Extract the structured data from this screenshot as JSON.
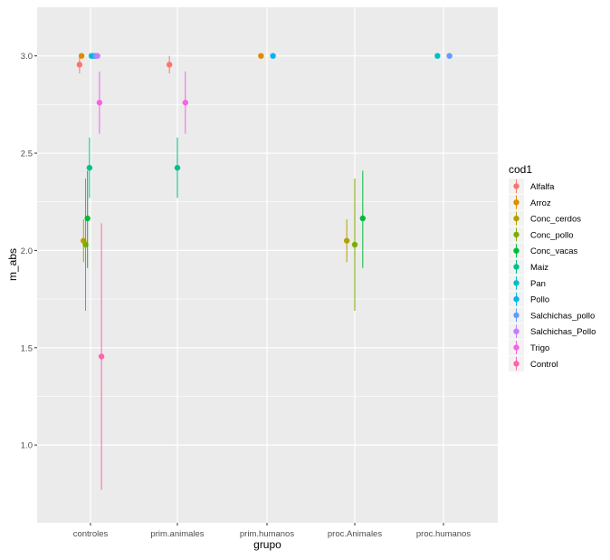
{
  "chart_data": {
    "type": "scatter",
    "subtype": "point-range (mean with error bars), dodged by series",
    "xlabel": "grupo",
    "ylabel": "m_abs",
    "categories": [
      "controles",
      "prim.animales",
      "prim.humanos",
      "proc.Animales",
      "proc.humanos"
    ],
    "ylim": [
      0.6,
      3.25
    ],
    "yticks": [
      1.0,
      1.5,
      2.0,
      2.5,
      3.0
    ],
    "ytick_labels": [
      "1.0",
      "1.5",
      "2.0",
      "2.5",
      "3.0"
    ],
    "grid": true,
    "legend": {
      "title": "cod1",
      "position": "right"
    },
    "series": [
      {
        "name": "Alfalfa",
        "color": "#F8766D",
        "points": [
          {
            "category": "controles",
            "y": 2.955,
            "ymin": 2.91,
            "ymax": 3.0
          },
          {
            "category": "prim.animales",
            "y": 2.955,
            "ymin": 2.91,
            "ymax": 3.0
          }
        ]
      },
      {
        "name": "Arroz",
        "color": "#DE8C00",
        "points": [
          {
            "category": "controles",
            "y": 3.0,
            "ymin": 3.0,
            "ymax": 3.0
          },
          {
            "category": "prim.humanos",
            "y": 3.0,
            "ymin": 3.0,
            "ymax": 3.0
          }
        ]
      },
      {
        "name": "Conc_cerdos",
        "color": "#B79F00",
        "points": [
          {
            "category": "controles",
            "y": 2.05,
            "ymin": 1.94,
            "ymax": 2.16
          },
          {
            "category": "proc.Animales",
            "y": 2.05,
            "ymin": 1.94,
            "ymax": 2.16
          }
        ]
      },
      {
        "name": "Conc_pollo",
        "color": "#7CAE00",
        "points": [
          {
            "category": "controles",
            "y": 2.03,
            "ymin": 1.69,
            "ymax": 2.37
          },
          {
            "category": "proc.Animales",
            "y": 2.03,
            "ymin": 1.69,
            "ymax": 2.37
          }
        ]
      },
      {
        "name": "Conc_vacas",
        "color": "#00BA38",
        "points": [
          {
            "category": "controles",
            "y": 2.165,
            "ymin": 1.91,
            "ymax": 2.41
          },
          {
            "category": "proc.Animales",
            "y": 2.165,
            "ymin": 1.91,
            "ymax": 2.41
          }
        ]
      },
      {
        "name": "Maiz",
        "color": "#00C08B",
        "points": [
          {
            "category": "controles",
            "y": 2.425,
            "ymin": 2.27,
            "ymax": 2.58
          },
          {
            "category": "prim.animales",
            "y": 2.425,
            "ymin": 2.27,
            "ymax": 2.58
          }
        ]
      },
      {
        "name": "Pan",
        "color": "#00BFC4",
        "points": [
          {
            "category": "controles",
            "y": 3.0,
            "ymin": 3.0,
            "ymax": 3.0
          },
          {
            "category": "proc.humanos",
            "y": 3.0,
            "ymin": 3.0,
            "ymax": 3.0
          }
        ]
      },
      {
        "name": "Pollo",
        "color": "#00B4F0",
        "points": [
          {
            "category": "controles",
            "y": 3.0,
            "ymin": 3.0,
            "ymax": 3.0
          },
          {
            "category": "prim.humanos",
            "y": 3.0,
            "ymin": 3.0,
            "ymax": 3.0
          }
        ]
      },
      {
        "name": "Salchichas_pollo",
        "color": "#619CFF",
        "points": [
          {
            "category": "controles",
            "y": 3.0,
            "ymin": 3.0,
            "ymax": 3.0
          },
          {
            "category": "proc.humanos",
            "y": 3.0,
            "ymin": 3.0,
            "ymax": 3.0
          }
        ]
      },
      {
        "name": "Salchichas_Pollo",
        "color": "#C77CFF",
        "points": [
          {
            "category": "controles",
            "y": 3.0,
            "ymin": 3.0,
            "ymax": 3.0
          }
        ]
      },
      {
        "name": "Trigo",
        "color": "#F564E3",
        "points": [
          {
            "category": "controles",
            "y": 2.76,
            "ymin": 2.6,
            "ymax": 2.92
          },
          {
            "category": "prim.animales",
            "y": 2.76,
            "ymin": 2.6,
            "ymax": 2.92
          }
        ]
      },
      {
        "name": "Control",
        "color": "#FF64B0",
        "points": [
          {
            "category": "controles",
            "y": 1.455,
            "ymin": 0.77,
            "ymax": 2.14
          }
        ]
      }
    ]
  }
}
